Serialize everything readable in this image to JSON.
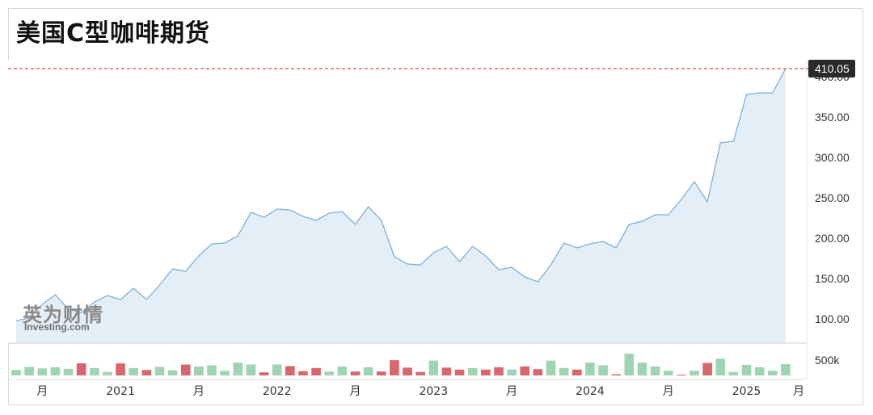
{
  "title": "美国C型咖啡期货",
  "watermark": {
    "cn": "英为财情",
    "en": "Investing.com"
  },
  "chart_data": {
    "type": "line",
    "title": "美国C型咖啡期货",
    "last_value_label": "410.05",
    "ylim": [
      70,
      420
    ],
    "y_ticks": [
      "100.00",
      "150.00",
      "200.00",
      "250.00",
      "300.00",
      "350.00",
      "400.00"
    ],
    "x_ticks": [
      {
        "label": "月",
        "t": 2
      },
      {
        "label": "2021",
        "t": 8
      },
      {
        "label": "月",
        "t": 14
      },
      {
        "label": "2022",
        "t": 20
      },
      {
        "label": "月",
        "t": 26
      },
      {
        "label": "2023",
        "t": 32
      },
      {
        "label": "月",
        "t": 38
      },
      {
        "label": "2024",
        "t": 44
      },
      {
        "label": "月",
        "t": 50
      },
      {
        "label": "2025",
        "t": 56
      },
      {
        "label": "月",
        "t": 60
      }
    ],
    "x": [
      0,
      1,
      2,
      3,
      4,
      5,
      6,
      7,
      8,
      9,
      10,
      11,
      12,
      13,
      14,
      15,
      16,
      17,
      18,
      19,
      20,
      21,
      22,
      23,
      24,
      25,
      26,
      27,
      28,
      29,
      30,
      31,
      32,
      33,
      34,
      35,
      36,
      37,
      38,
      39,
      40,
      41,
      42,
      43,
      44,
      45,
      46,
      47,
      48,
      49,
      50,
      51,
      52,
      53,
      54,
      55,
      56,
      57,
      58,
      59
    ],
    "values": [
      98,
      101,
      118,
      130,
      112,
      108,
      121,
      129,
      124,
      138,
      124,
      142,
      162,
      159,
      178,
      193,
      194,
      203,
      232,
      226,
      236,
      235,
      227,
      222,
      231,
      233,
      217,
      239,
      222,
      177,
      168,
      167,
      182,
      190,
      171,
      190,
      178,
      161,
      164,
      152,
      146,
      167,
      194,
      188,
      193,
      196,
      188,
      217,
      221,
      229,
      229,
      248,
      270,
      245,
      318,
      320,
      378,
      380,
      380,
      410.05
    ],
    "volume_series": {
      "name": "volume",
      "label": "500k",
      "max": 600000,
      "values": [
        140000,
        220000,
        180000,
        210000,
        170000,
        310000,
        190000,
        90000,
        310000,
        190000,
        140000,
        220000,
        130000,
        280000,
        230000,
        260000,
        120000,
        330000,
        280000,
        80000,
        280000,
        240000,
        110000,
        190000,
        100000,
        230000,
        100000,
        210000,
        100000,
        390000,
        200000,
        90000,
        380000,
        200000,
        150000,
        190000,
        150000,
        210000,
        150000,
        230000,
        160000,
        380000,
        190000,
        150000,
        330000,
        260000,
        30000,
        560000,
        330000,
        230000,
        120000,
        20000,
        120000,
        320000,
        430000,
        90000,
        270000,
        210000,
        120000,
        290000
      ],
      "direction": [
        "up",
        "up",
        "up",
        "up",
        "up",
        "down",
        "up",
        "up",
        "down",
        "up",
        "down",
        "up",
        "up",
        "down",
        "up",
        "up",
        "up",
        "up",
        "up",
        "down",
        "up",
        "down",
        "down",
        "down",
        "up",
        "up",
        "down",
        "up",
        "down",
        "down",
        "down",
        "down",
        "up",
        "down",
        "down",
        "up",
        "down",
        "down",
        "up",
        "down",
        "down",
        "up",
        "up",
        "down",
        "up",
        "up",
        "down",
        "up",
        "up",
        "up",
        "up",
        "down",
        "up",
        "down",
        "up",
        "up",
        "up",
        "up",
        "up",
        "up"
      ],
      "colors": {
        "up": "#9fd4b2",
        "down": "#d9666d"
      }
    },
    "colors": {
      "line": "#7fb0d6",
      "area": "#e4eef7",
      "last_line": "#d23c3c",
      "last_label_bg": "#2a2a2a"
    },
    "grid": false
  }
}
